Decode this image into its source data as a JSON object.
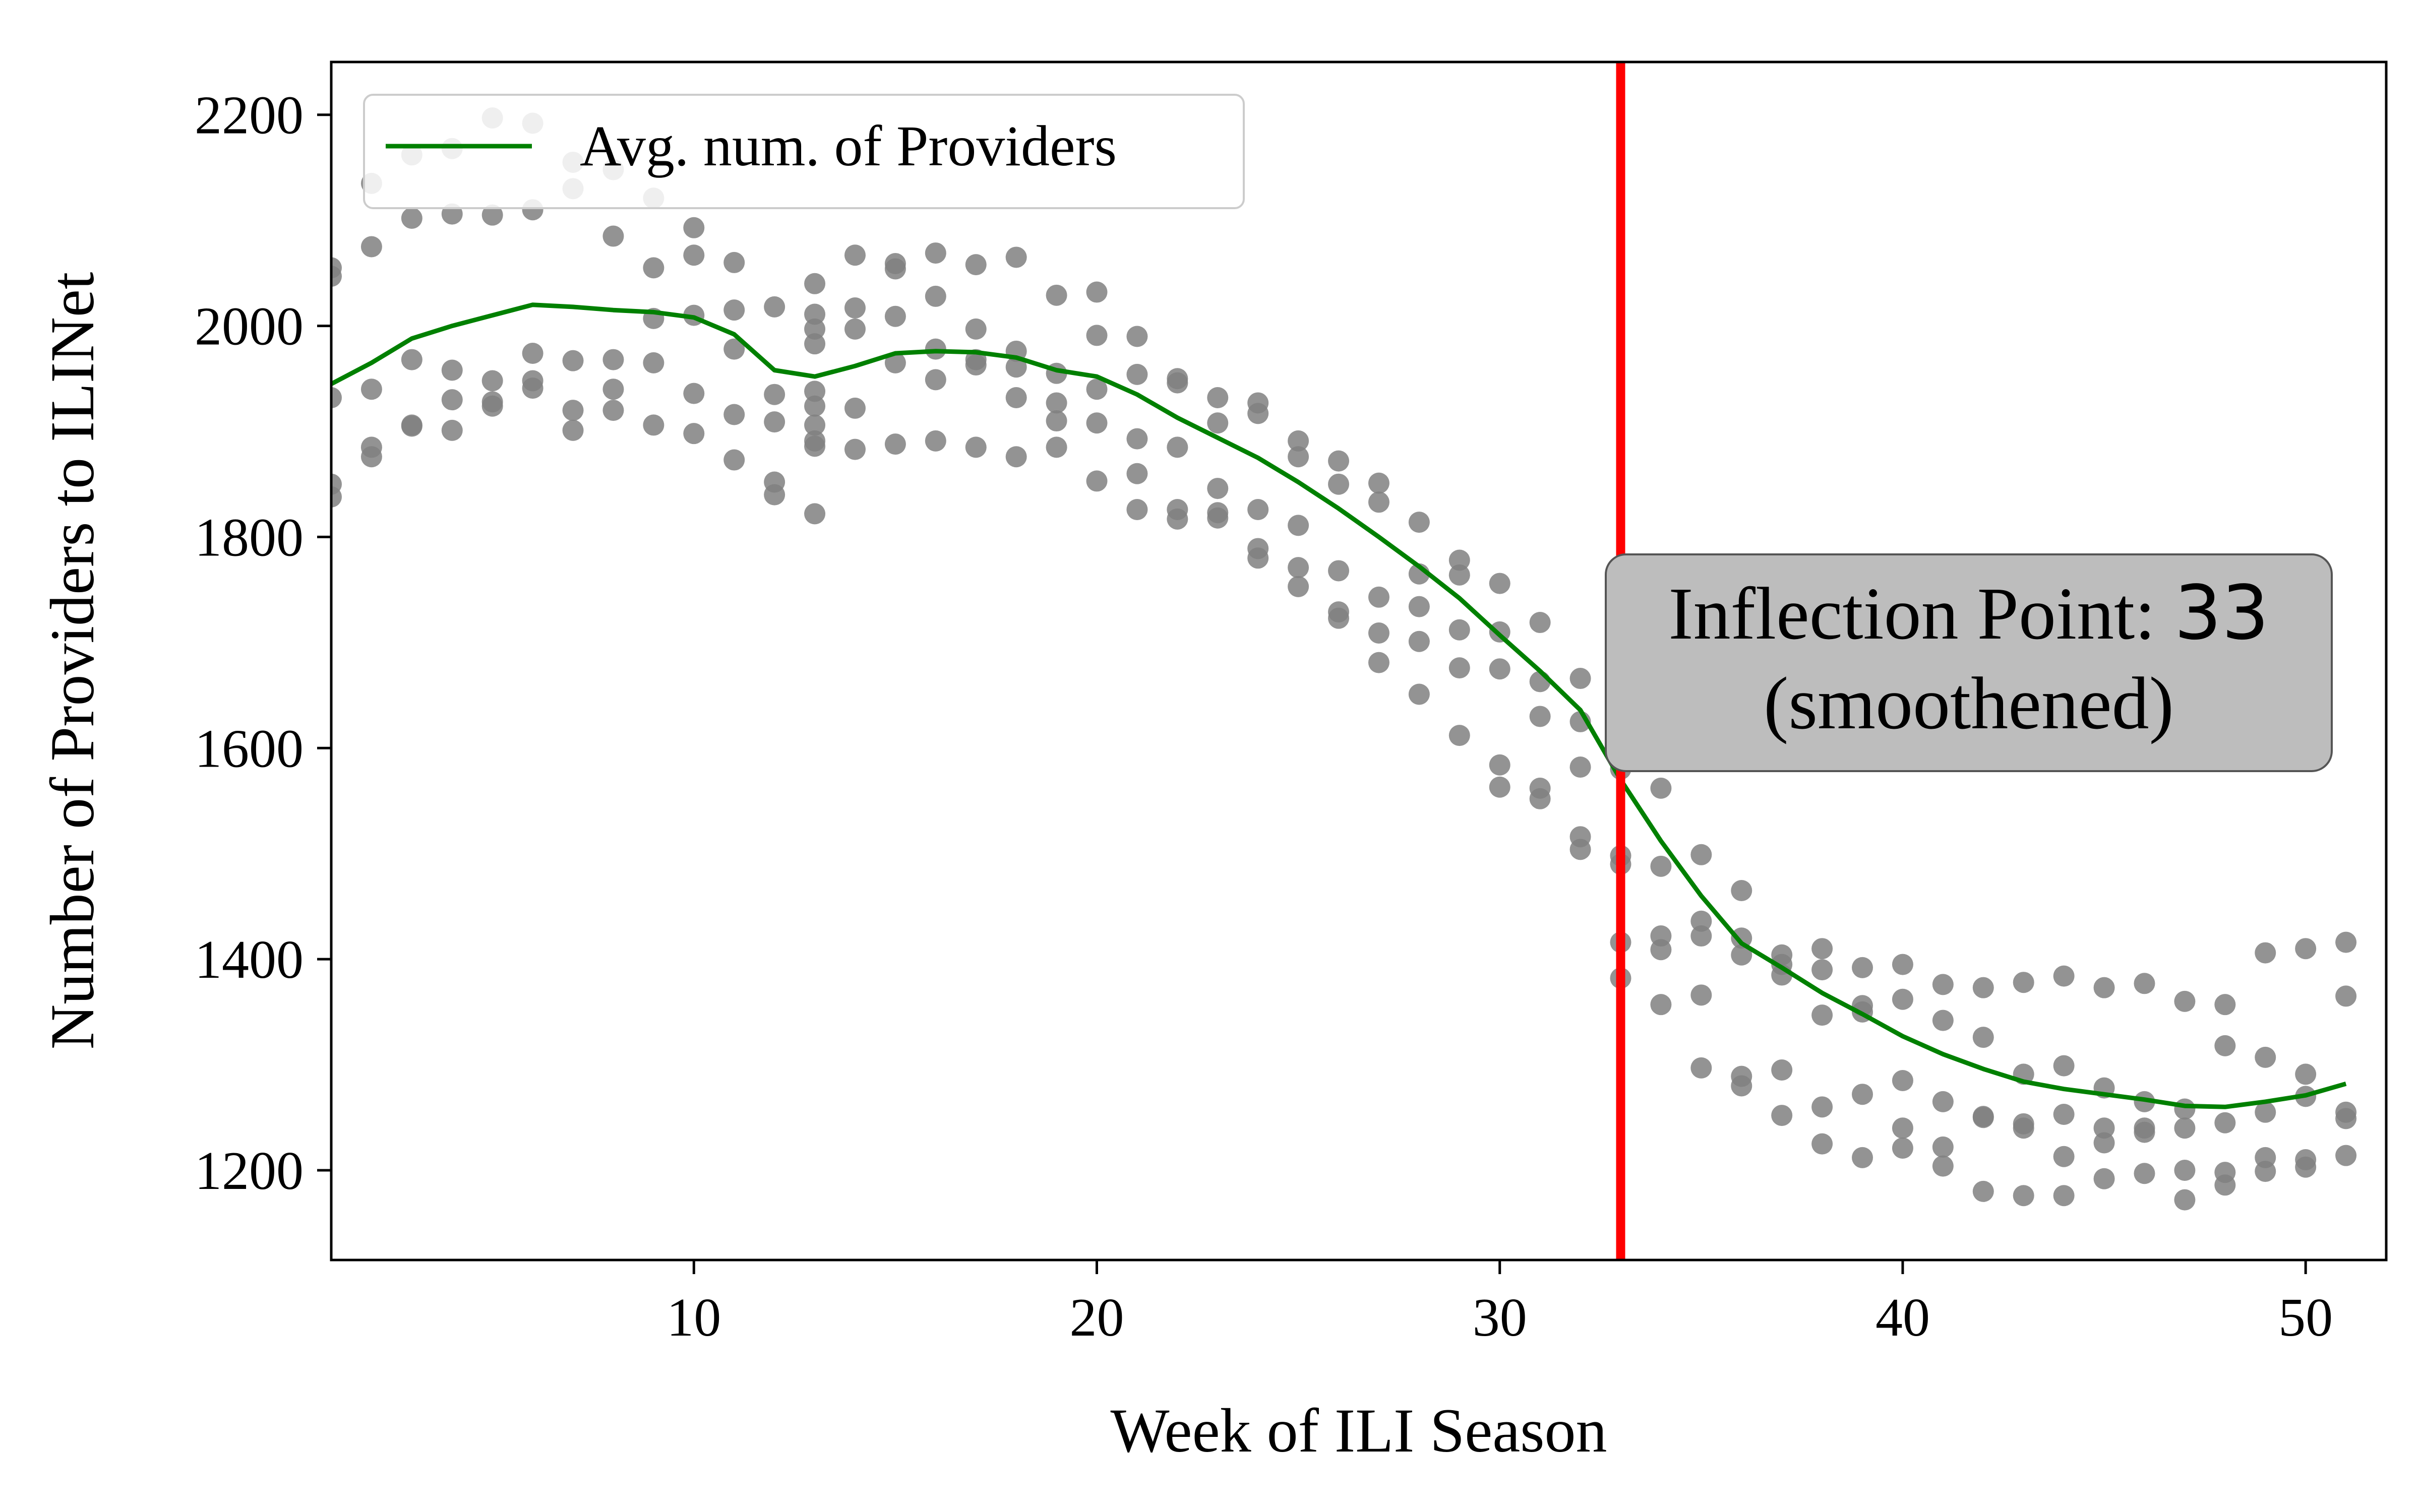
{
  "chart_data": {
    "type": "scatter",
    "xlabel": "Week of ILI Season",
    "ylabel": "Number of Providers to ILINet",
    "xlim": [
      1,
      52
    ],
    "ylim": [
      1115,
      2250
    ],
    "xticks": [
      10,
      20,
      30,
      40,
      50
    ],
    "yticks": [
      1200,
      1400,
      1600,
      1800,
      2000,
      2200
    ],
    "grid": false,
    "legend": {
      "placement": "top-left",
      "entries": [
        "Avg. num. of Providers"
      ]
    },
    "colors": {
      "points": "#808080",
      "average_line": "#008000",
      "inflection_line": "#ff0000",
      "annotation_box": "#bdbdbd"
    },
    "series": [
      {
        "name": "Avg. num. of Providers",
        "type": "line",
        "x": [
          1,
          2,
          3,
          4,
          5,
          6,
          7,
          8,
          9,
          10,
          11,
          12,
          13,
          14,
          15,
          16,
          17,
          18,
          19,
          20,
          21,
          22,
          23,
          24,
          25,
          26,
          27,
          28,
          29,
          30,
          31,
          32,
          33,
          34,
          35,
          36,
          37,
          38,
          39,
          40,
          41,
          42,
          43,
          44,
          45,
          46,
          47,
          48,
          49,
          50,
          51
        ],
        "y": [
          1945,
          1965,
          1988,
          2000,
          2010,
          2020,
          2018,
          2015,
          2013,
          2008,
          1992,
          1958,
          1952,
          1962,
          1974,
          1976,
          1975,
          1970,
          1958,
          1952,
          1935,
          1913,
          1894,
          1875,
          1852,
          1827,
          1800,
          1772,
          1742,
          1707,
          1673,
          1636,
          1570,
          1512,
          1460,
          1415,
          1392,
          1368,
          1348,
          1327,
          1310,
          1296,
          1284,
          1277,
          1272,
          1267,
          1261,
          1260,
          1265,
          1271,
          1282
        ]
      },
      {
        "type": "scatter",
        "points": [
          [
            1,
            2055
          ],
          [
            1,
            2047
          ],
          [
            1,
            1932
          ],
          [
            1,
            1850
          ],
          [
            1,
            1838
          ],
          [
            2,
            2135
          ],
          [
            2,
            2075
          ],
          [
            2,
            1940
          ],
          [
            2,
            1885
          ],
          [
            2,
            1876
          ],
          [
            3,
            2162
          ],
          [
            3,
            2102
          ],
          [
            3,
            1968
          ],
          [
            3,
            1906
          ],
          [
            3,
            1905
          ],
          [
            4,
            2168
          ],
          [
            4,
            2106
          ],
          [
            4,
            1958
          ],
          [
            4,
            1930
          ],
          [
            4,
            1901
          ],
          [
            5,
            2197
          ],
          [
            5,
            2105
          ],
          [
            5,
            1948
          ],
          [
            5,
            1928
          ],
          [
            5,
            1924
          ],
          [
            6,
            2192
          ],
          [
            6,
            2110
          ],
          [
            6,
            1974
          ],
          [
            6,
            1948
          ],
          [
            6,
            1941
          ],
          [
            7,
            2155
          ],
          [
            7,
            2130
          ],
          [
            7,
            1967
          ],
          [
            7,
            1920
          ],
          [
            7,
            1901
          ],
          [
            8,
            2148
          ],
          [
            8,
            2085
          ],
          [
            8,
            1968
          ],
          [
            8,
            1940
          ],
          [
            8,
            1920
          ],
          [
            9,
            2121
          ],
          [
            9,
            2055
          ],
          [
            9,
            2007
          ],
          [
            9,
            1965
          ],
          [
            9,
            1906
          ],
          [
            10,
            2093
          ],
          [
            10,
            2067
          ],
          [
            10,
            2010
          ],
          [
            10,
            1936
          ],
          [
            10,
            1898
          ],
          [
            11,
            2060
          ],
          [
            11,
            2015
          ],
          [
            11,
            1978
          ],
          [
            11,
            1916
          ],
          [
            11,
            1873
          ],
          [
            12,
            2018
          ],
          [
            12,
            1935
          ],
          [
            12,
            1909
          ],
          [
            12,
            1852
          ],
          [
            12,
            1840
          ],
          [
            13,
            2040
          ],
          [
            13,
            2011
          ],
          [
            13,
            1997
          ],
          [
            13,
            1983
          ],
          [
            13,
            1938
          ],
          [
            13,
            1924
          ],
          [
            13,
            1906
          ],
          [
            13,
            1891
          ],
          [
            13,
            1886
          ],
          [
            13,
            1822
          ],
          [
            14,
            2067
          ],
          [
            14,
            2017
          ],
          [
            14,
            1997
          ],
          [
            14,
            1922
          ],
          [
            14,
            1883
          ],
          [
            15,
            2059
          ],
          [
            15,
            2054
          ],
          [
            15,
            2009
          ],
          [
            15,
            1965
          ],
          [
            15,
            1888
          ],
          [
            16,
            2069
          ],
          [
            16,
            2028
          ],
          [
            16,
            1978
          ],
          [
            16,
            1949
          ],
          [
            16,
            1891
          ],
          [
            17,
            2058
          ],
          [
            17,
            1997
          ],
          [
            17,
            1968
          ],
          [
            17,
            1963
          ],
          [
            17,
            1885
          ],
          [
            18,
            2065
          ],
          [
            18,
            1976
          ],
          [
            18,
            1961
          ],
          [
            18,
            1932
          ],
          [
            18,
            1876
          ],
          [
            19,
            2029
          ],
          [
            19,
            1955
          ],
          [
            19,
            1927
          ],
          [
            19,
            1910
          ],
          [
            19,
            1885
          ],
          [
            20,
            2032
          ],
          [
            20,
            1991
          ],
          [
            20,
            1940
          ],
          [
            20,
            1908
          ],
          [
            20,
            1853
          ],
          [
            21,
            1990
          ],
          [
            21,
            1954
          ],
          [
            21,
            1893
          ],
          [
            21,
            1860
          ],
          [
            21,
            1826
          ],
          [
            22,
            1950
          ],
          [
            22,
            1946
          ],
          [
            22,
            1885
          ],
          [
            22,
            1826
          ],
          [
            22,
            1817
          ],
          [
            23,
            1932
          ],
          [
            23,
            1908
          ],
          [
            23,
            1846
          ],
          [
            23,
            1823
          ],
          [
            23,
            1818
          ],
          [
            24,
            1927
          ],
          [
            24,
            1917
          ],
          [
            24,
            1826
          ],
          [
            24,
            1789
          ],
          [
            24,
            1780
          ],
          [
            25,
            1891
          ],
          [
            25,
            1876
          ],
          [
            25,
            1811
          ],
          [
            25,
            1771
          ],
          [
            25,
            1753
          ],
          [
            26,
            1872
          ],
          [
            26,
            1850
          ],
          [
            26,
            1768
          ],
          [
            26,
            1729
          ],
          [
            26,
            1723
          ],
          [
            27,
            1851
          ],
          [
            27,
            1833
          ],
          [
            27,
            1743
          ],
          [
            27,
            1709
          ],
          [
            27,
            1681
          ],
          [
            28,
            1814
          ],
          [
            28,
            1765
          ],
          [
            28,
            1734
          ],
          [
            28,
            1701
          ],
          [
            28,
            1651
          ],
          [
            29,
            1778
          ],
          [
            29,
            1764
          ],
          [
            29,
            1712
          ],
          [
            29,
            1676
          ],
          [
            29,
            1612
          ],
          [
            30,
            1756
          ],
          [
            30,
            1710
          ],
          [
            30,
            1675
          ],
          [
            30,
            1584
          ],
          [
            30,
            1563
          ],
          [
            31,
            1719
          ],
          [
            31,
            1663
          ],
          [
            31,
            1630
          ],
          [
            31,
            1562
          ],
          [
            31,
            1552
          ],
          [
            32,
            1666
          ],
          [
            32,
            1625
          ],
          [
            32,
            1582
          ],
          [
            32,
            1516
          ],
          [
            32,
            1504
          ],
          [
            33,
            1580
          ],
          [
            33,
            1498
          ],
          [
            33,
            1490
          ],
          [
            33,
            1416
          ],
          [
            33,
            1382
          ],
          [
            34,
            1562
          ],
          [
            34,
            1488
          ],
          [
            34,
            1422
          ],
          [
            34,
            1409
          ],
          [
            34,
            1357
          ],
          [
            35,
            1499
          ],
          [
            35,
            1436
          ],
          [
            35,
            1422
          ],
          [
            35,
            1366
          ],
          [
            35,
            1297
          ],
          [
            36,
            1465
          ],
          [
            36,
            1420
          ],
          [
            36,
            1404
          ],
          [
            36,
            1289
          ],
          [
            36,
            1280
          ],
          [
            37,
            1404
          ],
          [
            37,
            1395
          ],
          [
            37,
            1385
          ],
          [
            37,
            1295
          ],
          [
            37,
            1252
          ],
          [
            38,
            1410
          ],
          [
            38,
            1390
          ],
          [
            38,
            1347
          ],
          [
            38,
            1260
          ],
          [
            38,
            1225
          ],
          [
            39,
            1392
          ],
          [
            39,
            1356
          ],
          [
            39,
            1350
          ],
          [
            39,
            1272
          ],
          [
            39,
            1212
          ],
          [
            40,
            1395
          ],
          [
            40,
            1362
          ],
          [
            40,
            1285
          ],
          [
            40,
            1240
          ],
          [
            40,
            1221
          ],
          [
            41,
            1376
          ],
          [
            41,
            1342
          ],
          [
            41,
            1265
          ],
          [
            41,
            1222
          ],
          [
            41,
            1204
          ],
          [
            42,
            1373
          ],
          [
            42,
            1326
          ],
          [
            42,
            1251
          ],
          [
            42,
            1250
          ],
          [
            42,
            1180
          ],
          [
            43,
            1378
          ],
          [
            43,
            1291
          ],
          [
            43,
            1244
          ],
          [
            43,
            1240
          ],
          [
            43,
            1176
          ],
          [
            44,
            1384
          ],
          [
            44,
            1299
          ],
          [
            44,
            1253
          ],
          [
            44,
            1213
          ],
          [
            44,
            1176
          ],
          [
            45,
            1373
          ],
          [
            45,
            1278
          ],
          [
            45,
            1240
          ],
          [
            45,
            1226
          ],
          [
            45,
            1192
          ],
          [
            46,
            1377
          ],
          [
            46,
            1265
          ],
          [
            46,
            1240
          ],
          [
            46,
            1236
          ],
          [
            46,
            1197
          ],
          [
            47,
            1360
          ],
          [
            47,
            1258
          ],
          [
            47,
            1240
          ],
          [
            47,
            1200
          ],
          [
            47,
            1172
          ],
          [
            48,
            1357
          ],
          [
            48,
            1318
          ],
          [
            48,
            1245
          ],
          [
            48,
            1198
          ],
          [
            48,
            1186
          ],
          [
            49,
            1406
          ],
          [
            49,
            1307
          ],
          [
            49,
            1255
          ],
          [
            49,
            1212
          ],
          [
            49,
            1199
          ],
          [
            50,
            1410
          ],
          [
            50,
            1291
          ],
          [
            50,
            1270
          ],
          [
            50,
            1210
          ],
          [
            50,
            1203
          ],
          [
            51,
            1416
          ],
          [
            51,
            1365
          ],
          [
            51,
            1255
          ],
          [
            51,
            1249
          ],
          [
            51,
            1214
          ]
        ]
      }
    ],
    "inflection": {
      "x": 33,
      "label_prefix": "Inflection Point: ",
      "label_value": "33",
      "label_suffix": "(smoothened)"
    }
  }
}
